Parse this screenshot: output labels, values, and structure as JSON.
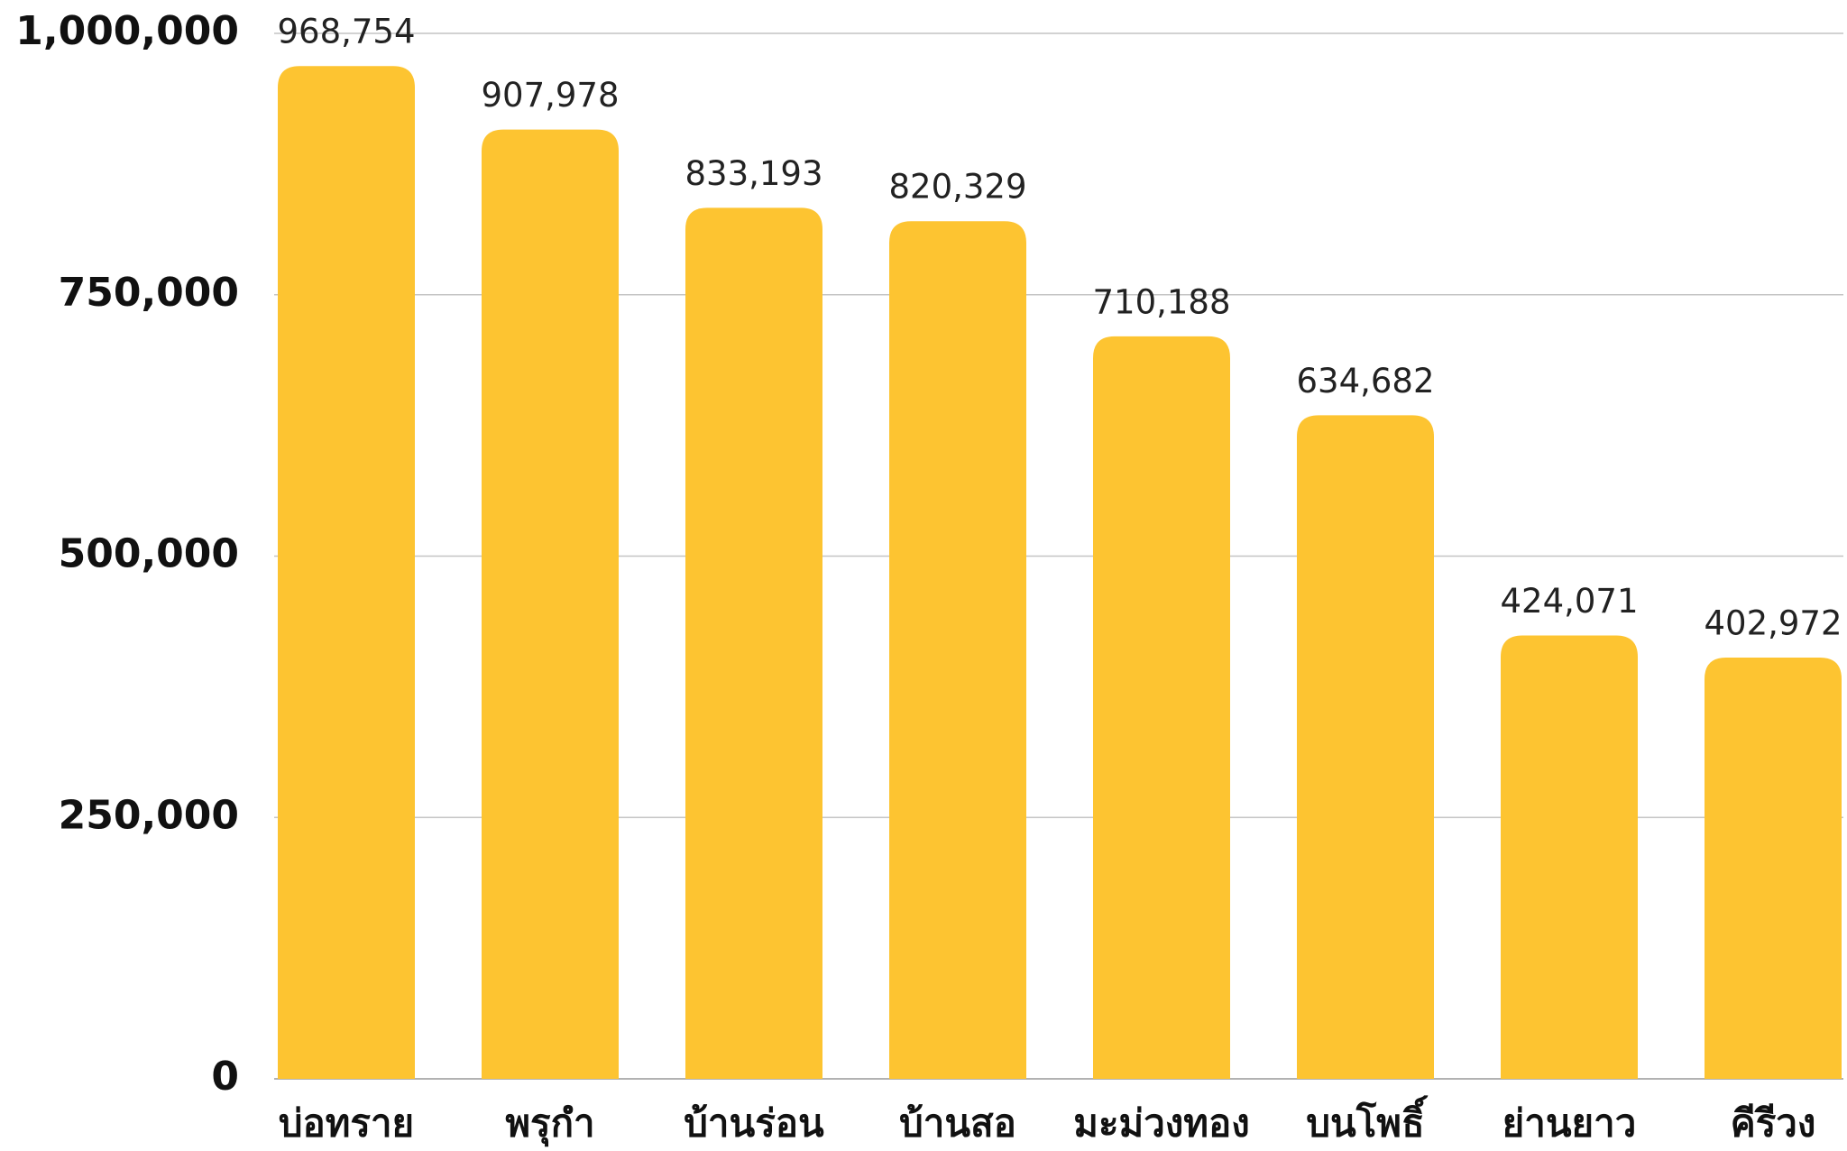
{
  "chart_data": {
    "type": "bar",
    "categories": [
      "บ่อทราย",
      "พรุกำ",
      "บ้านร่อน",
      "บ้านสอ",
      "มะม่วงทอง",
      "บนโพธิ์",
      "ย่านยาว",
      "คีรีวง"
    ],
    "values": [
      968754,
      907978,
      833193,
      820329,
      710188,
      634682,
      424071,
      402972
    ],
    "value_labels": [
      "968,754",
      "907,978",
      "833,193",
      "820,329",
      "710,188",
      "634,682",
      "424,071",
      "402,972"
    ],
    "color": "#fdc431",
    "ylim": [
      0,
      1000000
    ],
    "yticks": [
      0,
      {
        "value": 250000,
        "label": "250,000"
      },
      {
        "value": 500000,
        "label": "500,000"
      },
      {
        "value": 750000,
        "label": "750,000"
      },
      {
        "value": 1000000,
        "label": "1,000,000"
      }
    ],
    "grid": true
  }
}
